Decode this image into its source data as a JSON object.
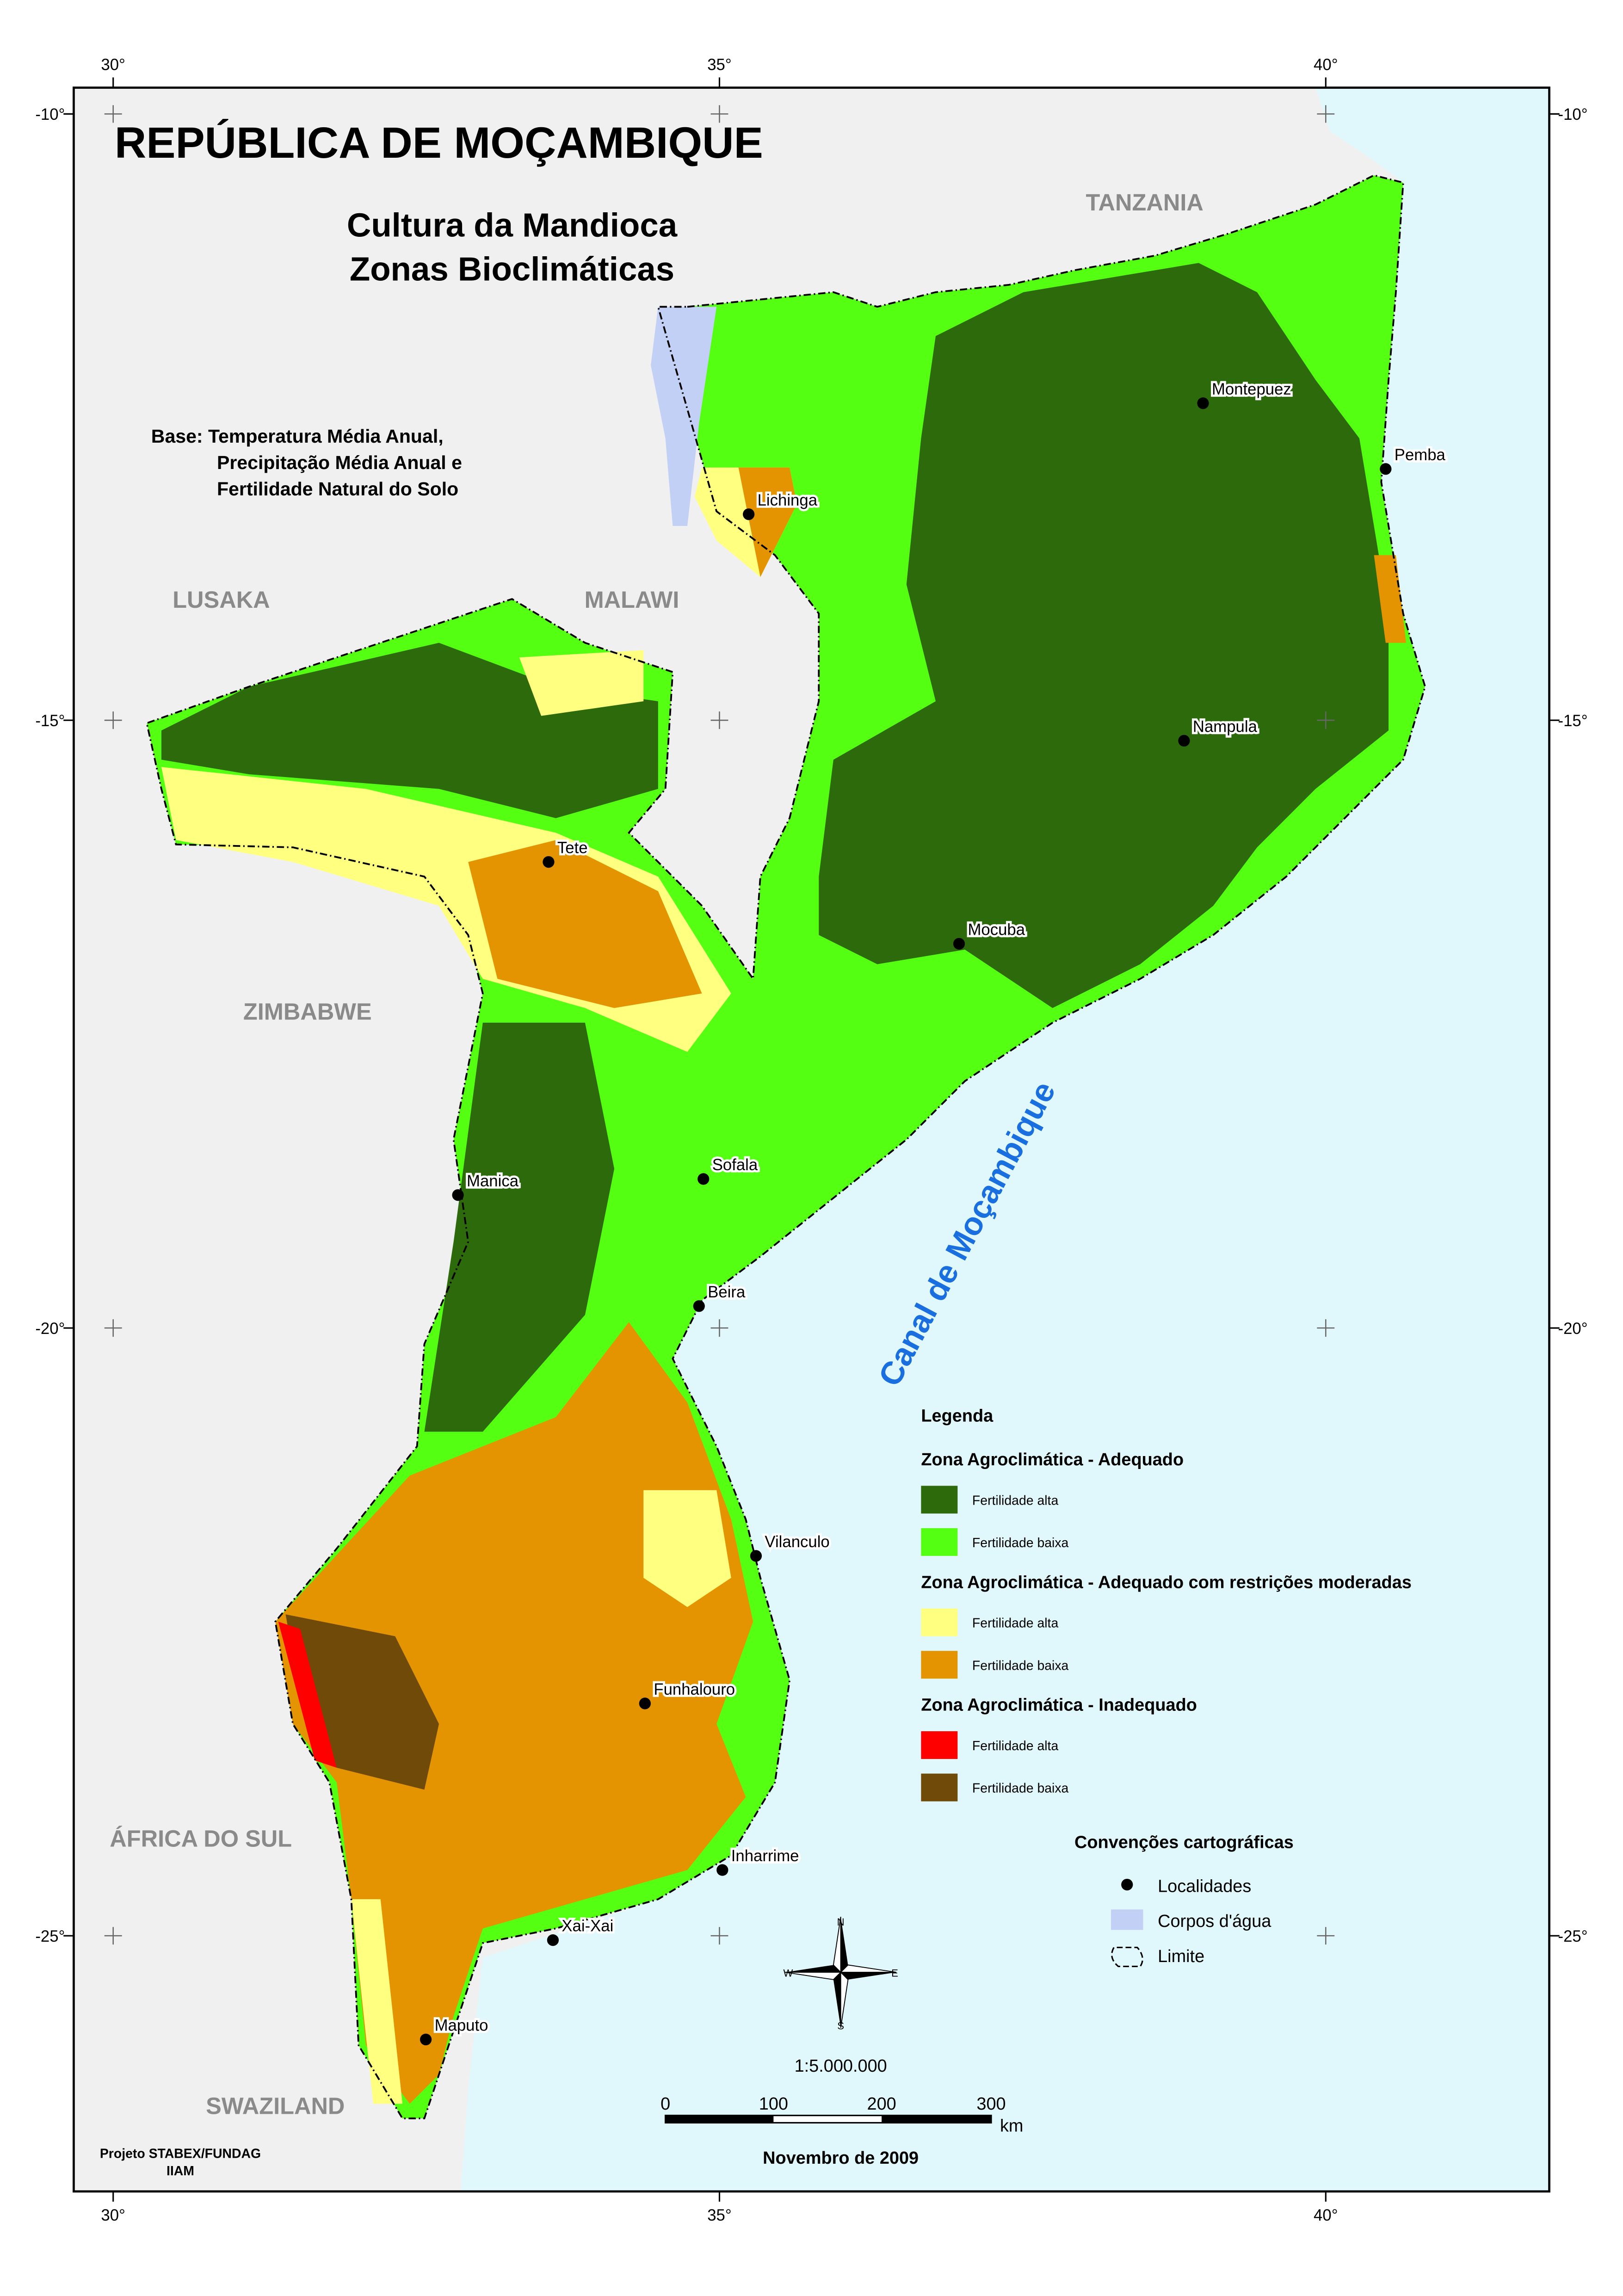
{
  "header": {
    "title": "REPÚBLICA DE MOÇAMBIQUE",
    "subtitle": [
      "Cultura da Mandioca",
      "Zonas Bioclimáticas"
    ],
    "base": [
      "Base: Temperatura Média Anual,",
      "Precipitação Média Anual e",
      "Fertilidade Natural do Solo"
    ]
  },
  "graticule": {
    "lon_labels": [
      "30°",
      "35°",
      "40°"
    ],
    "lat_labels": [
      "-10°",
      "-15°",
      "-20°",
      "-25°"
    ]
  },
  "countries": [
    "TANZANIA",
    "LUSAKA",
    "MALAWI",
    "ZIMBABWE",
    "ÁFRICA DO SUL",
    "SWAZILAND"
  ],
  "sea_label": "Canal de Moçambique",
  "cities": [
    "Montepuez",
    "Pemba",
    "Lichinga",
    "Nampula",
    "Tete",
    "Mocuba",
    "Manica",
    "Sofala",
    "Beira",
    "Vilanculo",
    "Funhalouro",
    "Inharrime",
    "Xai-Xai",
    "Maputo"
  ],
  "legend": {
    "title": "Legenda",
    "groups": [
      {
        "title": "Zona Agroclimática  - Adequado",
        "items": [
          {
            "label": "Fertilidade alta",
            "color": "#2c6a0c"
          },
          {
            "label": "Fertilidade baixa",
            "color": "#55ff11"
          }
        ]
      },
      {
        "title": "Zona Agroclimática  - Adequado com restrições moderadas",
        "items": [
          {
            "label": "Fertilidade alta",
            "color": "#ffff80"
          },
          {
            "label": "Fertilidade baixa",
            "color": "#e39400"
          }
        ]
      },
      {
        "title": "Zona Agroclimática  - Inadequado",
        "items": [
          {
            "label": "Fertilidade alta",
            "color": "#ff0000"
          },
          {
            "label": "Fertilidade baixa",
            "color": "#704a08"
          }
        ]
      }
    ]
  },
  "conventions": {
    "title": "Convenções cartográficas",
    "items": [
      "Localidades",
      "Corpos d'água",
      "Limite"
    ]
  },
  "compass": {
    "n": "N",
    "s": "S",
    "e": "E",
    "w": "W"
  },
  "scale": {
    "ratio": "1:5.000.000",
    "ticks": [
      "0",
      "100",
      "200",
      "300"
    ],
    "unit": "km"
  },
  "credits": [
    "Projeto STABEX/FUNDAG",
    "IIAM"
  ],
  "date": "Novembro de 2009"
}
